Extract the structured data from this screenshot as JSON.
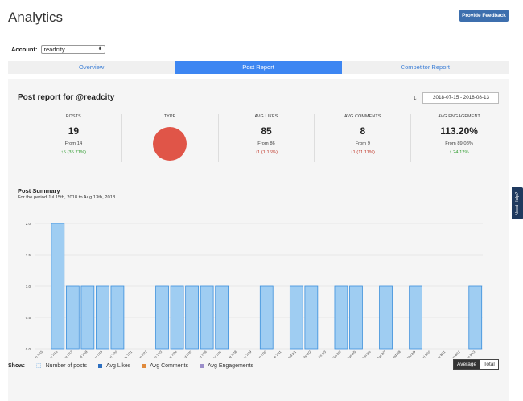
{
  "header": {
    "title": "Analytics",
    "feedback_label": "Provide Feedback"
  },
  "account": {
    "label": "Account:",
    "selected": "readcity"
  },
  "tabs": [
    {
      "label": "Overview",
      "active": false
    },
    {
      "label": "Post Report",
      "active": true
    },
    {
      "label": "Competitor Report",
      "active": false
    }
  ],
  "report": {
    "title": "Post report for @readcity",
    "date_range": "2018-07-15 - 2018-08-13"
  },
  "stats": {
    "posts": {
      "label": "POSTS",
      "value": "19",
      "from": "From 14",
      "change": "↑5 (35.71%)"
    },
    "type": {
      "label": "TYPE"
    },
    "avg_likes": {
      "label": "AVG LIKES",
      "value": "85",
      "from": "From 86",
      "change": "↓1 (1.16%)"
    },
    "avg_comments": {
      "label": "AVG COMMENTS",
      "value": "8",
      "from": "From 9",
      "change": "↓1 (11.11%)"
    },
    "avg_engagement": {
      "label": "AVG ENGAGEMENT",
      "value": "113.20%",
      "from": "From 89.08%",
      "change": "↑ 24.12%"
    }
  },
  "summary": {
    "title": "Post Summary",
    "subtitle": "For the period Jul 15th, 2018 to Aug 13th, 2018"
  },
  "chart_data": {
    "type": "bar",
    "categories": [
      "Sun 7/15",
      "Mon 7/16",
      "Tue 7/17",
      "Wed 7/18",
      "Thu 7/19",
      "Fri 7/20",
      "Sat 7/21",
      "Sun 7/22",
      "Mon 7/23",
      "Tue 7/24",
      "Wed 7/25",
      "Thu 7/26",
      "Fri 7/27",
      "Sat 7/28",
      "Sun 7/29",
      "Mon 7/30",
      "Tue 7/31",
      "Wed 8/1",
      "Thu 8/2",
      "Fri 8/3",
      "Sat 8/4",
      "Sun 8/5",
      "Mon 8/6",
      "Tue 8/7",
      "Wed 8/8",
      "Thu 8/9",
      "Fri 8/10",
      "Sat 8/11",
      "Sun 8/12",
      "Mon 8/13"
    ],
    "series": [
      {
        "name": "Number of posts",
        "values": [
          0,
          2,
          1,
          1,
          1,
          1,
          0,
          0,
          1,
          1,
          1,
          1,
          1,
          0,
          0,
          1,
          0,
          1,
          1,
          0,
          1,
          1,
          0,
          1,
          0,
          1,
          0,
          0,
          0,
          1
        ]
      }
    ],
    "yticks": [
      "0.0",
      "0.5",
      "1.0",
      "1.5",
      "2.0"
    ],
    "ylim": [
      0,
      2
    ],
    "grid": true,
    "bar_color": "#9fcdf2",
    "bar_stroke": "#3b8fdc"
  },
  "legend": {
    "show_label": "Show:",
    "items": [
      {
        "label": "Number of posts",
        "color": "#3b8fdc",
        "icon": "chart-icon"
      },
      {
        "label": "Avg Likes",
        "color": "#2d6fc0"
      },
      {
        "label": "Avg Comments",
        "color": "#e08a3c"
      },
      {
        "label": "Avg Engagements",
        "color": "#9b8ec9"
      }
    ]
  },
  "toggle": {
    "average": "Average",
    "total": "Total"
  },
  "help": {
    "label": "Need Help?"
  }
}
